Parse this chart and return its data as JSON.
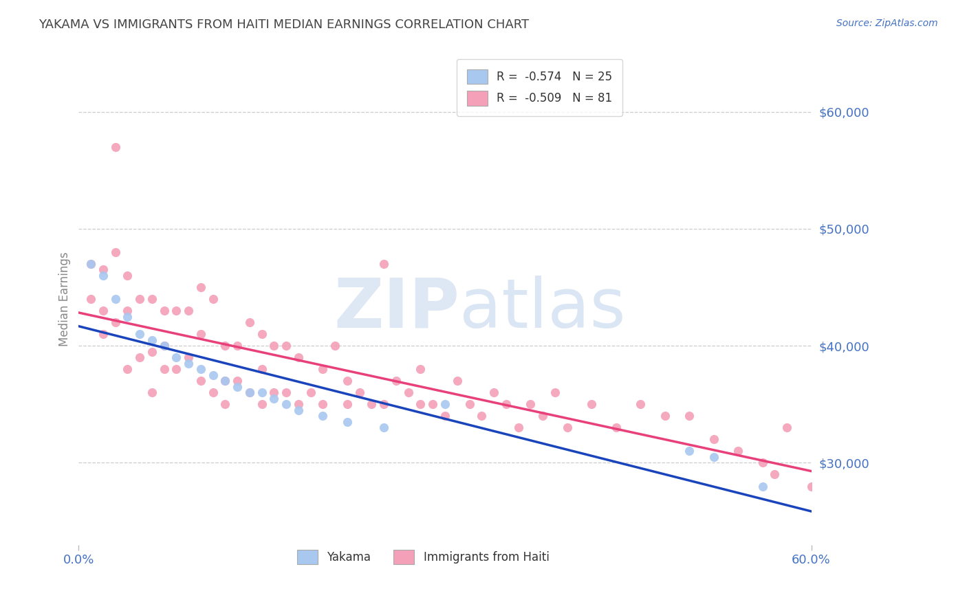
{
  "title": "YAKAMA VS IMMIGRANTS FROM HAITI MEDIAN EARNINGS CORRELATION CHART",
  "source": "Source: ZipAtlas.com",
  "ylabel": "Median Earnings",
  "yticks": [
    30000,
    40000,
    50000,
    60000
  ],
  "ytick_labels": [
    "$30,000",
    "$40,000",
    "$50,000",
    "$60,000"
  ],
  "xmin": 0.0,
  "xmax": 0.6,
  "ymin": 23000,
  "ymax": 65000,
  "legend_yakama": "R =  -0.574   N = 25",
  "legend_haiti": "R =  -0.509   N = 81",
  "legend_label_yakama": "Yakama",
  "legend_label_haiti": "Immigrants from Haiti",
  "color_yakama": "#a8c8f0",
  "color_haiti": "#f4a0b8",
  "color_yakama_line": "#1a44bb",
  "color_haiti_line": "#e8407a",
  "color_axis_label": "#4472c4",
  "color_title": "#444444",
  "yakama_x": [
    0.01,
    0.02,
    0.03,
    0.04,
    0.05,
    0.06,
    0.07,
    0.08,
    0.09,
    0.1,
    0.11,
    0.12,
    0.13,
    0.14,
    0.15,
    0.16,
    0.17,
    0.18,
    0.2,
    0.22,
    0.25,
    0.3,
    0.5,
    0.52,
    0.56
  ],
  "yakama_y": [
    47000,
    46000,
    44000,
    42500,
    41000,
    40500,
    40000,
    39000,
    38500,
    38000,
    37500,
    37000,
    36500,
    36000,
    36000,
    35500,
    35000,
    34500,
    34000,
    33500,
    33000,
    35000,
    31000,
    30500,
    28000
  ],
  "haiti_x": [
    0.01,
    0.01,
    0.02,
    0.02,
    0.02,
    0.03,
    0.03,
    0.03,
    0.04,
    0.04,
    0.04,
    0.05,
    0.05,
    0.06,
    0.06,
    0.06,
    0.07,
    0.07,
    0.07,
    0.08,
    0.08,
    0.09,
    0.09,
    0.1,
    0.1,
    0.1,
    0.11,
    0.11,
    0.12,
    0.12,
    0.12,
    0.13,
    0.13,
    0.14,
    0.14,
    0.15,
    0.15,
    0.15,
    0.16,
    0.16,
    0.17,
    0.17,
    0.18,
    0.18,
    0.19,
    0.2,
    0.2,
    0.21,
    0.22,
    0.22,
    0.23,
    0.24,
    0.25,
    0.25,
    0.26,
    0.27,
    0.28,
    0.28,
    0.29,
    0.3,
    0.31,
    0.32,
    0.33,
    0.34,
    0.35,
    0.36,
    0.37,
    0.38,
    0.39,
    0.4,
    0.42,
    0.44,
    0.46,
    0.48,
    0.5,
    0.52,
    0.54,
    0.56,
    0.57,
    0.58,
    0.6
  ],
  "haiti_y": [
    47000,
    44000,
    46500,
    43000,
    41000,
    57000,
    48000,
    42000,
    46000,
    43000,
    38000,
    44000,
    39000,
    44000,
    39500,
    36000,
    43000,
    40000,
    38000,
    43000,
    38000,
    43000,
    39000,
    45000,
    41000,
    37000,
    44000,
    36000,
    40000,
    37000,
    35000,
    40000,
    37000,
    42000,
    36000,
    41000,
    38000,
    35000,
    40000,
    36000,
    40000,
    36000,
    39000,
    35000,
    36000,
    38000,
    35000,
    40000,
    37000,
    35000,
    36000,
    35000,
    47000,
    35000,
    37000,
    36000,
    38000,
    35000,
    35000,
    34000,
    37000,
    35000,
    34000,
    36000,
    35000,
    33000,
    35000,
    34000,
    36000,
    33000,
    35000,
    33000,
    35000,
    34000,
    34000,
    32000,
    31000,
    30000,
    29000,
    33000,
    28000
  ]
}
